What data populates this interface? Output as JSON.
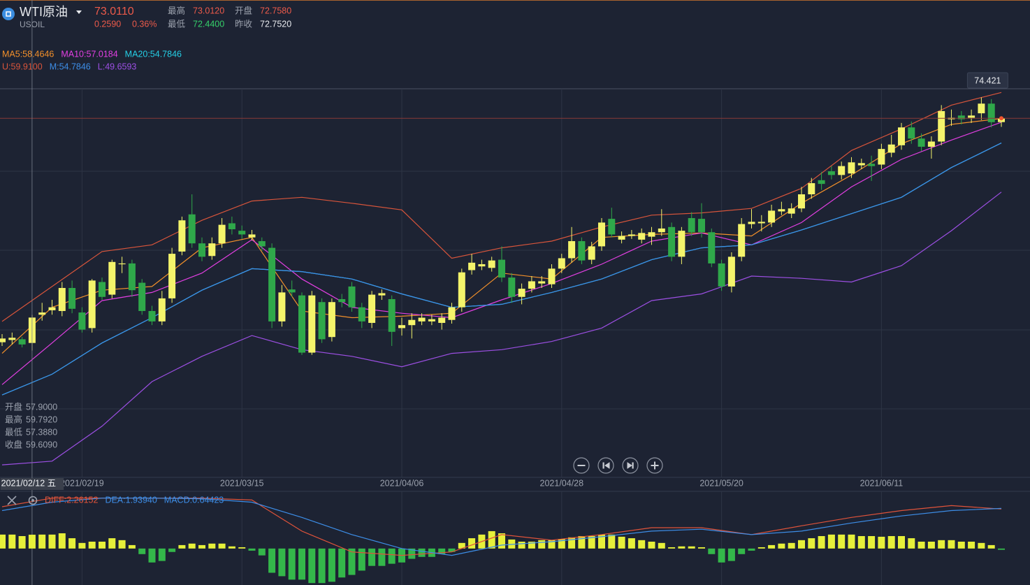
{
  "header": {
    "name": "WTI原油",
    "symbol": "USOIL",
    "price": "73.0110",
    "change": "0.2590",
    "change_pct": "0.36%",
    "stats": [
      {
        "label": "最高",
        "value": "73.0120"
      },
      {
        "label": "开盘",
        "value": "72.7580"
      },
      {
        "label": "最低",
        "value": "72.4400"
      },
      {
        "label": "昨收",
        "value": "72.7520"
      }
    ]
  },
  "tooltip": [
    {
      "label": "开盘",
      "value": "57.9000"
    },
    {
      "label": "最高",
      "value": "59.7920"
    },
    {
      "label": "最低",
      "value": "57.3880"
    },
    {
      "label": "收盘",
      "value": "59.6090"
    }
  ],
  "chart_data": [
    {
      "type": "candlestick",
      "up_color": "#f4f46b",
      "down_color": "#2fa84a",
      "ylim": [
        49,
        75
      ],
      "crosshair": 3,
      "categories": [
        null,
        null,
        null,
        "2021/02/12 五",
        null,
        null,
        null,
        null,
        "2021/02/19",
        null,
        null,
        null,
        null,
        null,
        null,
        null,
        null,
        null,
        null,
        null,
        null,
        null,
        null,
        null,
        "2021/03/15",
        null,
        null,
        null,
        null,
        null,
        null,
        null,
        null,
        null,
        null,
        null,
        null,
        null,
        null,
        null,
        "2021/04/06",
        null,
        null,
        null,
        null,
        null,
        null,
        null,
        null,
        null,
        null,
        null,
        null,
        null,
        null,
        null,
        "2021/04/28",
        null,
        null,
        null,
        null,
        null,
        null,
        null,
        null,
        null,
        null,
        null,
        null,
        null,
        null,
        null,
        "2021/05/20",
        null,
        null,
        null,
        null,
        null,
        null,
        null,
        null,
        null,
        null,
        null,
        null,
        null,
        null,
        null,
        "2021/06/11",
        null,
        null,
        null,
        null,
        null,
        null,
        null,
        null,
        null,
        null,
        null,
        null
      ],
      "candles": [
        [
          57.95,
          58.5,
          57.7,
          58.2
        ],
        [
          58.1,
          58.6,
          57.8,
          58.25
        ],
        [
          58.15,
          58.3,
          57.6,
          57.8
        ],
        [
          57.9,
          59.792,
          57.388,
          59.609
        ],
        [
          59.8,
          60.6,
          59.4,
          59.95
        ],
        [
          60.1,
          60.8,
          59.8,
          60.3
        ],
        [
          60.05,
          62.0,
          59.7,
          61.6
        ],
        [
          61.6,
          62.1,
          59.9,
          60.2
        ],
        [
          59.95,
          60.3,
          58.6,
          58.8
        ],
        [
          58.9,
          62.2,
          58.6,
          62.1
        ],
        [
          62.0,
          62.3,
          60.8,
          61.0
        ],
        [
          61.15,
          63.5,
          60.9,
          63.35
        ],
        [
          63.2,
          63.7,
          62.6,
          63.25
        ],
        [
          63.25,
          63.5,
          61.0,
          61.45
        ],
        [
          61.95,
          62.2,
          59.8,
          60.05
        ],
        [
          60.05,
          60.4,
          59.1,
          59.35
        ],
        [
          59.35,
          61.4,
          59.1,
          60.9
        ],
        [
          60.9,
          64.3,
          60.6,
          63.9
        ],
        [
          64.05,
          66.4,
          63.8,
          66.15
        ],
        [
          66.55,
          67.9,
          64.3,
          64.6
        ],
        [
          64.6,
          65.0,
          63.4,
          63.7
        ],
        [
          63.75,
          65.0,
          63.5,
          64.6
        ],
        [
          64.6,
          66.3,
          64.3,
          65.85
        ],
        [
          65.95,
          66.4,
          65.2,
          65.55
        ],
        [
          65.45,
          65.8,
          64.9,
          65.2
        ],
        [
          65.0,
          65.5,
          64.8,
          65.2
        ],
        [
          64.75,
          65.0,
          64.1,
          64.4
        ],
        [
          64.3,
          64.6,
          58.9,
          59.35
        ],
        [
          59.35,
          61.8,
          59.0,
          61.3
        ],
        [
          61.5,
          62.1,
          61.0,
          61.3
        ],
        [
          61.1,
          61.3,
          57.1,
          57.25
        ],
        [
          57.25,
          61.4,
          57.1,
          61.1
        ],
        [
          60.65,
          60.9,
          57.9,
          58.15
        ],
        [
          58.3,
          60.9,
          58.0,
          60.65
        ],
        [
          60.85,
          61.2,
          60.3,
          60.65
        ],
        [
          61.7,
          62.0,
          60.0,
          60.3
        ],
        [
          60.3,
          60.6,
          58.9,
          59.35
        ],
        [
          59.25,
          61.4,
          58.9,
          61.15
        ],
        [
          61.1,
          61.5,
          60.8,
          61.25
        ],
        [
          60.85,
          61.1,
          57.7,
          58.65
        ],
        [
          58.9,
          59.6,
          58.4,
          59.1
        ],
        [
          59.1,
          59.9,
          58.2,
          59.45
        ],
        [
          59.35,
          59.9,
          59.1,
          59.6
        ],
        [
          59.35,
          59.8,
          59.1,
          59.5
        ],
        [
          59.25,
          59.9,
          58.8,
          59.6
        ],
        [
          59.45,
          60.6,
          59.2,
          60.3
        ],
        [
          60.3,
          62.9,
          60.0,
          62.65
        ],
        [
          62.8,
          63.9,
          62.5,
          63.3
        ],
        [
          63.05,
          63.5,
          62.8,
          63.2
        ],
        [
          62.95,
          63.7,
          62.7,
          63.45
        ],
        [
          63.5,
          64.4,
          62.0,
          62.3
        ],
        [
          62.3,
          62.6,
          60.6,
          61.0
        ],
        [
          61.0,
          61.9,
          60.5,
          61.55
        ],
        [
          61.55,
          62.4,
          61.3,
          62.05
        ],
        [
          61.9,
          62.4,
          61.6,
          62.05
        ],
        [
          61.85,
          63.2,
          61.6,
          62.9
        ],
        [
          62.9,
          63.9,
          62.6,
          63.6
        ],
        [
          63.6,
          65.7,
          63.3,
          64.75
        ],
        [
          64.75,
          65.0,
          63.2,
          63.45
        ],
        [
          63.5,
          64.7,
          63.2,
          64.4
        ],
        [
          64.4,
          66.3,
          64.1,
          66.0
        ],
        [
          66.25,
          67.0,
          65.0,
          65.2
        ],
        [
          64.85,
          65.4,
          64.6,
          65.1
        ],
        [
          65.1,
          65.5,
          64.9,
          65.2
        ],
        [
          64.85,
          65.6,
          64.6,
          65.3
        ],
        [
          65.05,
          65.7,
          64.5,
          65.35
        ],
        [
          65.35,
          66.9,
          65.1,
          65.6
        ],
        [
          65.7,
          66.0,
          63.4,
          63.7
        ],
        [
          63.7,
          65.7,
          63.2,
          65.45
        ],
        [
          66.3,
          66.7,
          65.1,
          65.35
        ],
        [
          66.25,
          67.3,
          65.0,
          65.35
        ],
        [
          65.35,
          65.6,
          63.0,
          63.25
        ],
        [
          63.25,
          63.5,
          61.4,
          61.7
        ],
        [
          61.7,
          64.0,
          61.3,
          63.7
        ],
        [
          63.7,
          66.3,
          63.4,
          65.9
        ],
        [
          65.9,
          66.9,
          65.6,
          66.05
        ],
        [
          65.95,
          66.5,
          65.4,
          66.05
        ],
        [
          66.0,
          67.2,
          65.7,
          66.8
        ],
        [
          66.75,
          67.4,
          66.5,
          66.9
        ],
        [
          66.6,
          67.3,
          66.3,
          66.95
        ],
        [
          66.95,
          68.4,
          66.7,
          67.9
        ],
        [
          67.9,
          69.0,
          67.6,
          68.65
        ],
        [
          68.85,
          69.4,
          68.2,
          68.6
        ],
        [
          69.45,
          69.8,
          68.9,
          69.2
        ],
        [
          69.2,
          70.1,
          68.9,
          69.8
        ],
        [
          69.3,
          70.4,
          69.0,
          70.05
        ],
        [
          69.85,
          70.3,
          69.6,
          70.0
        ],
        [
          69.95,
          70.5,
          68.8,
          69.8
        ],
        [
          69.9,
          71.3,
          69.6,
          70.95
        ],
        [
          70.7,
          71.9,
          70.4,
          71.25
        ],
        [
          71.2,
          72.7,
          70.9,
          72.4
        ],
        [
          72.4,
          72.8,
          71.3,
          71.65
        ],
        [
          71.65,
          72.0,
          70.8,
          71.1
        ],
        [
          71.1,
          71.8,
          70.3,
          71.45
        ],
        [
          71.45,
          73.9,
          71.2,
          73.5
        ],
        [
          72.95,
          73.6,
          72.5,
          73.05
        ],
        [
          73.2,
          73.5,
          72.6,
          72.95
        ],
        [
          73.05,
          73.6,
          72.7,
          73.2
        ],
        [
          73.35,
          74.421,
          72.9,
          74.0
        ],
        [
          74.0,
          74.3,
          72.4,
          72.752
        ],
        [
          72.758,
          73.012,
          72.44,
          73.011
        ]
      ],
      "series": [
        {
          "name": "MA5:58.4646",
          "color": "#f3902a",
          "x": [
            0,
            5,
            10,
            15,
            20,
            25,
            30,
            35,
            40,
            45,
            50,
            55,
            60,
            65,
            70,
            75,
            80,
            85,
            90,
            95,
            100
          ],
          "values": [
            57.2,
            60.3,
            61.45,
            61.7,
            64.3,
            65.0,
            60.05,
            59.6,
            59.7,
            59.9,
            62.6,
            62.2,
            65.0,
            65.2,
            65.3,
            65.1,
            67.3,
            69.2,
            71.3,
            72.6,
            73.0
          ]
        },
        {
          "name": "MA10:57.0184",
          "color": "#e23fe2",
          "x": [
            0,
            5,
            10,
            15,
            20,
            25,
            30,
            35,
            40,
            45,
            50,
            55,
            60,
            65,
            70,
            75,
            80,
            85,
            90,
            95,
            100
          ],
          "values": [
            55.1,
            57.9,
            60.75,
            61.3,
            62.6,
            64.85,
            62.2,
            60.3,
            59.9,
            59.6,
            60.8,
            61.9,
            63.2,
            64.75,
            65.3,
            64.5,
            66.0,
            68.4,
            70.25,
            71.55,
            72.75
          ]
        },
        {
          "name": "MA20:54.7846",
          "color": "#25cfe6",
          "x": [
            0,
            5,
            10,
            15,
            20,
            25,
            30,
            35,
            40,
            45,
            50,
            55,
            60,
            65,
            70,
            75,
            80,
            85,
            90,
            95,
            100
          ],
          "values": [
            54.4,
            55.8,
            57.9,
            59.6,
            61.45,
            62.9,
            62.7,
            62.2,
            61.2,
            60.3,
            60.5,
            61.3,
            62.2,
            63.5,
            64.3,
            64.5,
            65.5,
            66.6,
            67.7,
            69.7,
            71.35
          ]
        },
        {
          "name": "U:59.9100",
          "color": "#d9553b",
          "x": [
            0,
            5,
            10,
            15,
            20,
            25,
            30,
            35,
            40,
            45,
            50,
            55,
            60,
            65,
            70,
            75,
            80,
            85,
            90,
            95,
            100
          ],
          "values": [
            59.35,
            61.7,
            64.05,
            64.5,
            66.15,
            67.45,
            67.7,
            67.3,
            66.85,
            63.6,
            64.3,
            64.75,
            65.7,
            66.5,
            66.65,
            66.95,
            68.3,
            70.85,
            72.3,
            73.9,
            74.75
          ]
        },
        {
          "name": "M:54.7846",
          "color": "#3d8ee8",
          "x": [
            0,
            5,
            10,
            15,
            20,
            25,
            30,
            35,
            40,
            45,
            50,
            55,
            60,
            65,
            70,
            75,
            80,
            85,
            90,
            95,
            100
          ],
          "values": [
            54.4,
            55.8,
            57.9,
            59.6,
            61.45,
            62.9,
            62.7,
            62.2,
            61.2,
            60.3,
            60.5,
            61.3,
            62.2,
            63.5,
            64.3,
            64.5,
            65.5,
            66.6,
            67.7,
            69.7,
            71.35
          ]
        },
        {
          "name": "L:49.6593",
          "color": "#9c4fe3",
          "x": [
            0,
            5,
            10,
            15,
            20,
            25,
            30,
            35,
            40,
            45,
            50,
            55,
            60,
            65,
            70,
            75,
            80,
            85,
            90,
            95,
            100
          ],
          "values": [
            49.7,
            49.95,
            52.3,
            55.3,
            57.0,
            58.4,
            57.45,
            57.0,
            56.3,
            57.2,
            57.45,
            58.0,
            58.9,
            60.75,
            61.2,
            62.4,
            62.25,
            62.0,
            63.1,
            65.45,
            68.05
          ]
        }
      ]
    },
    {
      "type": "macd",
      "ylim": [
        -1.7,
        2.6
      ],
      "up_color": "#e6f03a",
      "down_color": "#34b74a",
      "histogram": {
        "name": "MACD:0.64423",
        "color": "#3d8ee8",
        "values": [
          0.65,
          0.65,
          0.58,
          0.64423,
          0.65,
          0.65,
          0.71,
          0.48,
          0.26,
          0.32,
          0.32,
          0.48,
          0.39,
          0.16,
          -0.26,
          -0.65,
          -0.58,
          -0.16,
          0.16,
          0.23,
          0.16,
          0.23,
          0.23,
          0.1,
          0.06,
          -0.1,
          -0.32,
          -1.13,
          -1.29,
          -1.45,
          -1.45,
          -1.61,
          -1.61,
          -1.55,
          -1.35,
          -1.23,
          -1.03,
          -0.81,
          -0.81,
          -0.71,
          -0.65,
          -0.48,
          -0.39,
          -0.39,
          -0.26,
          -0.16,
          0.26,
          0.48,
          0.65,
          0.81,
          0.71,
          0.42,
          0.32,
          0.32,
          0.39,
          0.39,
          0.45,
          0.52,
          0.58,
          0.58,
          0.65,
          0.65,
          0.55,
          0.48,
          0.39,
          0.32,
          0.26,
          0.06,
          0.1,
          0.1,
          0.06,
          -0.26,
          -0.65,
          -0.58,
          -0.26,
          -0.1,
          0.06,
          0.16,
          0.23,
          0.26,
          0.39,
          0.48,
          0.58,
          0.65,
          0.65,
          0.65,
          0.58,
          0.58,
          0.55,
          0.58,
          0.58,
          0.48,
          0.32,
          0.32,
          0.39,
          0.39,
          0.32,
          0.32,
          0.26,
          0.16,
          -0.06
        ]
      },
      "series": [
        {
          "name": "DIFF:2.26152",
          "color": "#e0533a",
          "x": [
            0,
            5,
            10,
            15,
            20,
            25,
            30,
            35,
            40,
            45,
            50,
            55,
            60,
            65,
            70,
            75,
            80,
            85,
            90,
            95,
            100
          ],
          "values": [
            1.95,
            2.35,
            2.35,
            2.35,
            2.35,
            2.26,
            0.81,
            -0.16,
            -0.32,
            -0.16,
            0.65,
            0.39,
            0.65,
            0.97,
            0.97,
            0.65,
            1.06,
            1.45,
            1.77,
            2.0,
            1.84
          ]
        },
        {
          "name": "DEA:1.93940",
          "color": "#3d8ee8",
          "x": [
            0,
            5,
            10,
            15,
            20,
            25,
            30,
            35,
            40,
            45,
            50,
            55,
            60,
            65,
            70,
            75,
            80,
            85,
            90,
            95,
            100
          ],
          "values": [
            1.77,
            2.16,
            2.35,
            2.35,
            2.32,
            2.16,
            1.45,
            0.65,
            0.0,
            -0.32,
            0.16,
            0.32,
            0.55,
            0.81,
            0.9,
            0.65,
            0.81,
            1.19,
            1.52,
            1.77,
            1.87
          ]
        }
      ]
    }
  ]
}
